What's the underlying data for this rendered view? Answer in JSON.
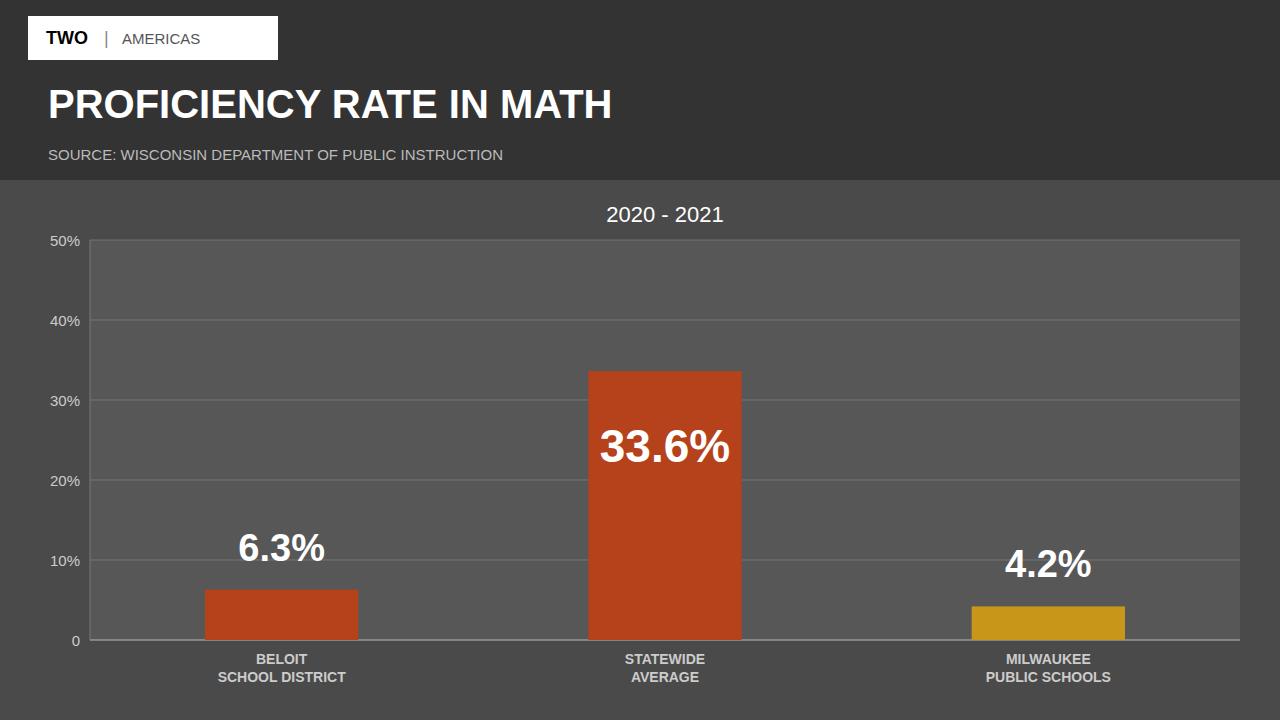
{
  "chart_data": {
    "type": "bar",
    "title": "PROFICIENCY RATE IN MATH",
    "subtitle": "2020 - 2021",
    "annotations": [
      "SOURCE: WISCONSIN DEPARTMENT OF PUBLIC INSTRUCTION",
      "TWO",
      "|",
      "AMERICAS"
    ],
    "categories": [
      "BELOIT\nSCHOOL DISTRICT",
      "STATEWIDE\nAVERAGE",
      "MILWAUKEE\nPUBLIC SCHOOLS"
    ],
    "values": [
      6.3,
      33.6,
      4.2
    ],
    "value_labels": [
      "6.3%",
      "33.6%",
      "4.2%"
    ],
    "colors": [
      "#b5421a",
      "#b5421a",
      "#c8971a"
    ],
    "ylim": [
      0,
      50
    ],
    "yticks": [
      0,
      {
        "value": 10,
        "label": "10%"
      },
      {
        "value": 20,
        "label": "20%"
      },
      {
        "value": 30,
        "label": "30%"
      },
      {
        "value": 40,
        "label": "40%"
      },
      {
        "value": 50,
        "label": "50%"
      }
    ],
    "grid": true,
    "data_labels": true
  }
}
